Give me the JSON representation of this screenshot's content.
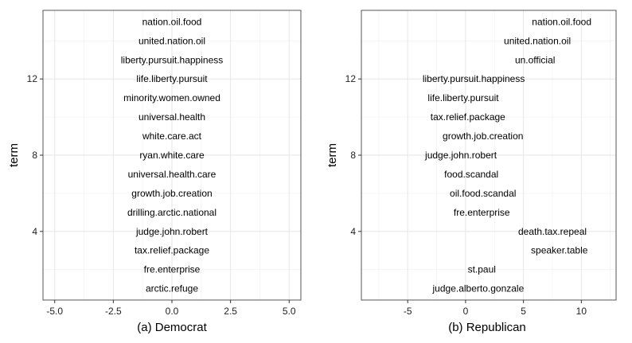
{
  "chart_data": [
    {
      "type": "scatter",
      "label_type": "text-labels",
      "xlabel": "(a) Democrat",
      "ylabel": "term",
      "xlim": [
        -5.5,
        5.5
      ],
      "ylim": [
        0.4,
        15.6
      ],
      "xticks": [
        -5.0,
        -2.5,
        0.0,
        2.5,
        5.0
      ],
      "xtick_labels": [
        "-5.0",
        "-2.5",
        "0.0",
        "2.5",
        "5.0"
      ],
      "yticks": [
        4,
        8,
        12
      ],
      "ytick_labels": [
        "4",
        "8",
        "12"
      ],
      "grid": true,
      "points": [
        {
          "term": "nation.oil.food",
          "x": 0.0,
          "y": 15
        },
        {
          "term": "united.nation.oil",
          "x": 0.0,
          "y": 14
        },
        {
          "term": "liberty.pursuit.happiness",
          "x": 0.0,
          "y": 13
        },
        {
          "term": "life.liberty.pursuit",
          "x": 0.0,
          "y": 12
        },
        {
          "term": "minority.women.owned",
          "x": 0.0,
          "y": 11
        },
        {
          "term": "universal.health",
          "x": 0.0,
          "y": 10
        },
        {
          "term": "white.care.act",
          "x": 0.0,
          "y": 9
        },
        {
          "term": "ryan.white.care",
          "x": 0.0,
          "y": 8
        },
        {
          "term": "universal.health.care",
          "x": 0.0,
          "y": 7
        },
        {
          "term": "growth.job.creation",
          "x": 0.0,
          "y": 6
        },
        {
          "term": "drilling.arctic.national",
          "x": 0.0,
          "y": 5
        },
        {
          "term": "judge.john.robert",
          "x": 0.0,
          "y": 4
        },
        {
          "term": "tax.relief.package",
          "x": 0.0,
          "y": 3
        },
        {
          "term": "fre.enterprise",
          "x": 0.0,
          "y": 2
        },
        {
          "term": "arctic.refuge",
          "x": 0.0,
          "y": 1
        }
      ]
    },
    {
      "type": "scatter",
      "label_type": "text-labels",
      "xlabel": "(b) Republican",
      "ylabel": "term",
      "xlim": [
        -9,
        13
      ],
      "ylim": [
        0.4,
        15.6
      ],
      "xticks": [
        -5,
        0,
        5,
        10
      ],
      "xtick_labels": [
        "-5",
        "0",
        "5",
        "10"
      ],
      "yticks": [
        4,
        8,
        12
      ],
      "ytick_labels": [
        "4",
        "8",
        "12"
      ],
      "grid": true,
      "points": [
        {
          "term": "nation.oil.food",
          "x": 8.3,
          "y": 15
        },
        {
          "term": "united.nation.oil",
          "x": 6.2,
          "y": 14
        },
        {
          "term": "un.official",
          "x": 6.0,
          "y": 13
        },
        {
          "term": "liberty.pursuit.happiness",
          "x": 0.7,
          "y": 12
        },
        {
          "term": "life.liberty.pursuit",
          "x": -0.2,
          "y": 11
        },
        {
          "term": "tax.relief.package",
          "x": 0.2,
          "y": 10
        },
        {
          "term": "growth.job.creation",
          "x": 1.5,
          "y": 9
        },
        {
          "term": "judge.john.robert",
          "x": -0.4,
          "y": 8
        },
        {
          "term": "food.scandal",
          "x": 0.5,
          "y": 7
        },
        {
          "term": "oil.food.scandal",
          "x": 1.5,
          "y": 6
        },
        {
          "term": "fre.enterprise",
          "x": 1.4,
          "y": 5
        },
        {
          "term": "death.tax.repeal",
          "x": 7.5,
          "y": 4
        },
        {
          "term": "speaker.table",
          "x": 8.1,
          "y": 3
        },
        {
          "term": "st.paul",
          "x": 1.4,
          "y": 2
        },
        {
          "term": "judge.alberto.gonzale",
          "x": 1.1,
          "y": 1
        }
      ]
    }
  ]
}
